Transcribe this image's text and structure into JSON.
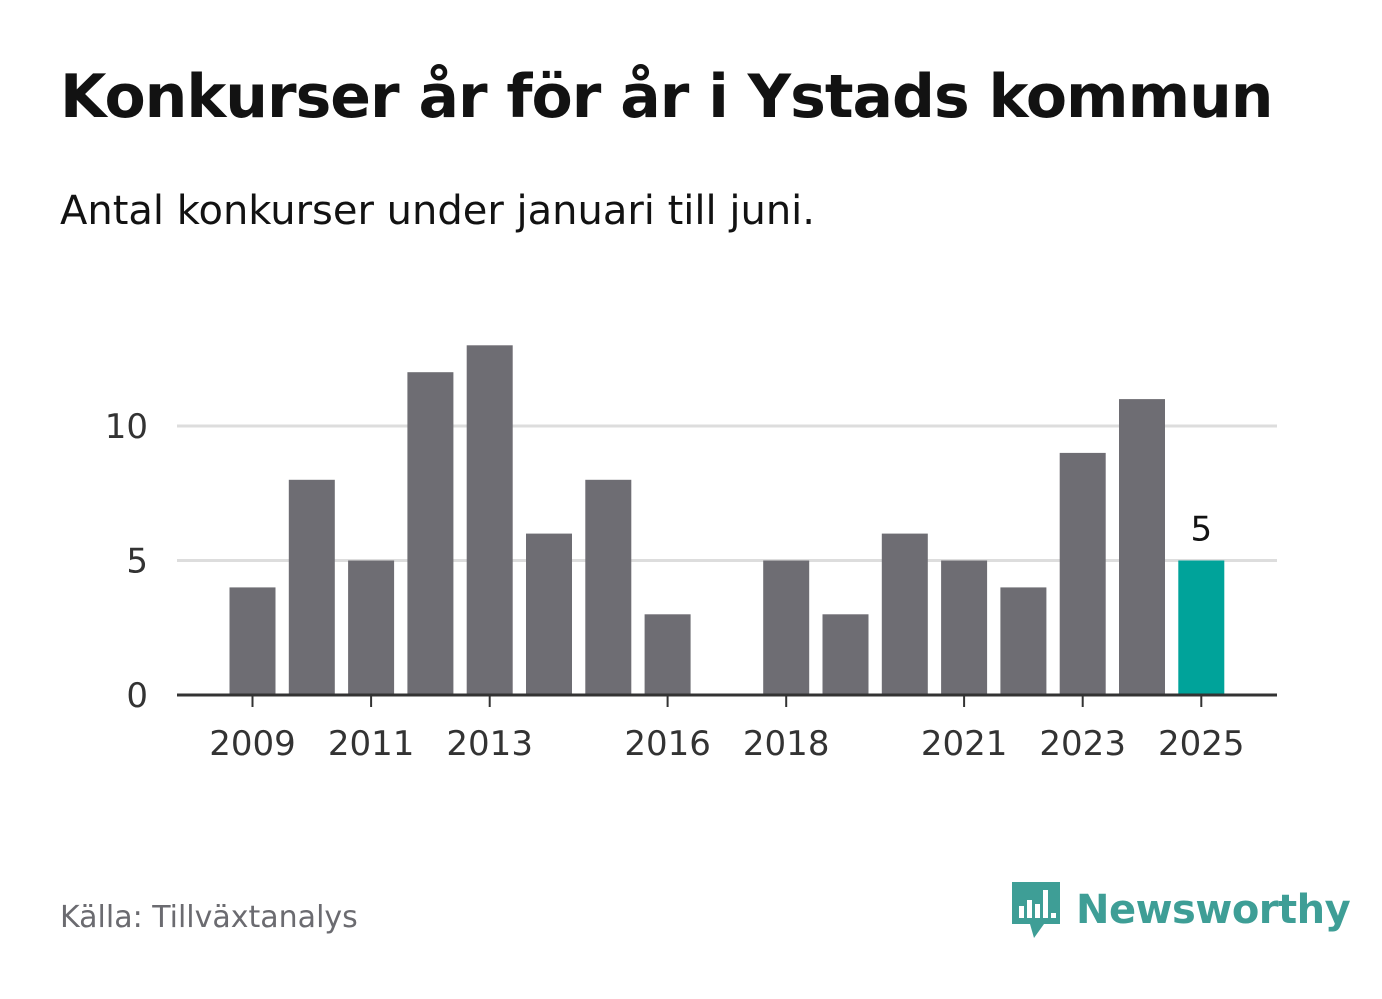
{
  "header": {
    "title": "Konkurser år för år i Ystads kommun",
    "subtitle": "Antal konkurser under januari till juni."
  },
  "footer": {
    "source": "Källa: Tillväxtanalys",
    "brand": "Newsworthy"
  },
  "colors": {
    "bar": "#6e6d73",
    "highlight": "#00a39a",
    "grid": "#dddddd",
    "axis": "#333333",
    "brand": "#3e9e96"
  },
  "chart_data": {
    "type": "bar",
    "categories": [
      "2009",
      "2010",
      "2011",
      "2012",
      "2013",
      "2014",
      "2015",
      "2016",
      "2017",
      "2018",
      "2019",
      "2020",
      "2021",
      "2022",
      "2023",
      "2024",
      "2025"
    ],
    "values": [
      4,
      8,
      5,
      12,
      13,
      6,
      8,
      3,
      0,
      5,
      3,
      6,
      5,
      4,
      9,
      11,
      5
    ],
    "x_tick_labels": [
      "2009",
      "2011",
      "2013",
      "2016",
      "2018",
      "2021",
      "2023",
      "2025"
    ],
    "y_ticks": [
      0,
      5,
      10
    ],
    "ylim": [
      0,
      14
    ],
    "highlight_category": "2025",
    "data_labels": [
      {
        "category": "2025",
        "text": "5"
      }
    ],
    "grid": true,
    "title": "Konkurser år för år i Ystads kommun",
    "subtitle": "Antal konkurser under januari till juni.",
    "xlabel": "",
    "ylabel": ""
  }
}
